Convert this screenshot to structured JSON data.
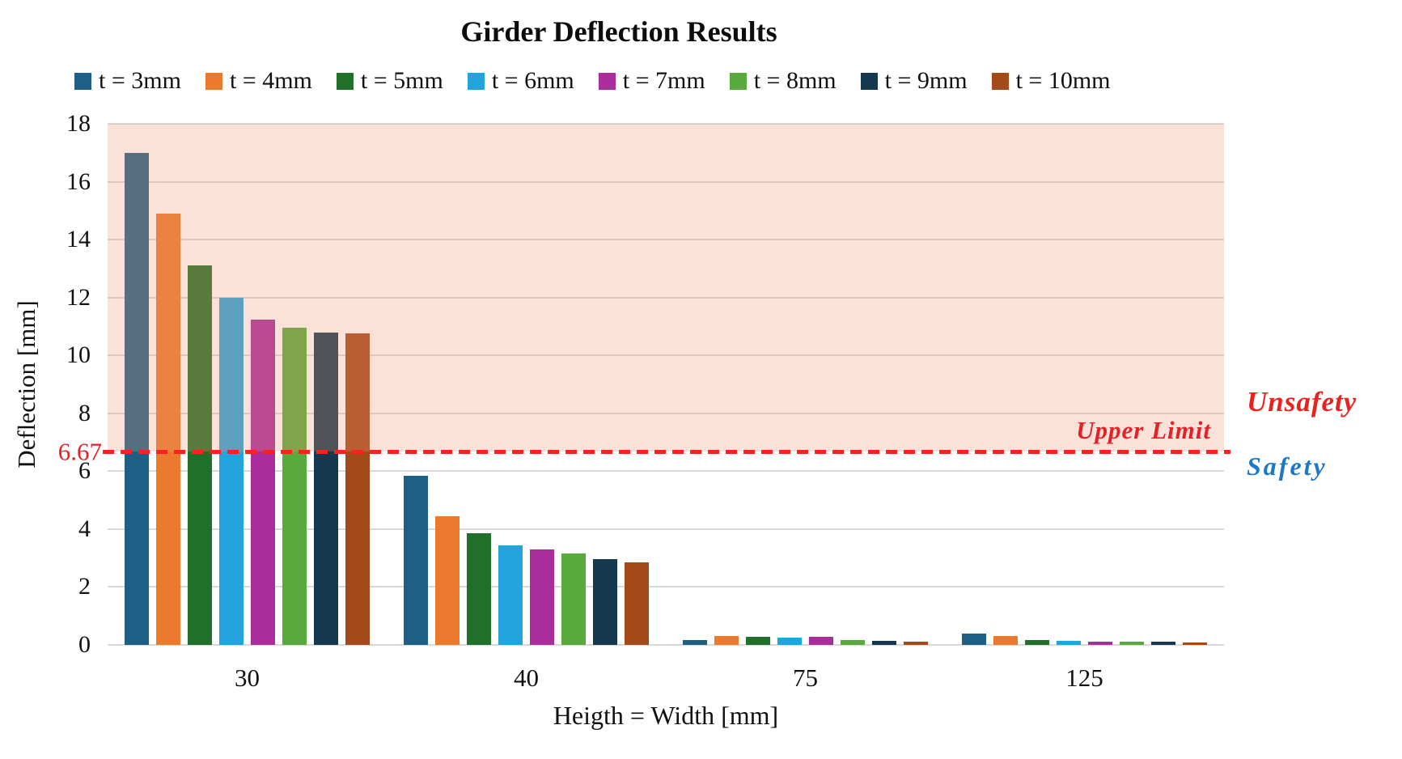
{
  "chart_data": {
    "type": "bar",
    "title": "Girder Deflection Results",
    "xlabel": "Heigth = Width [mm]",
    "ylabel": "Deflection [mm]",
    "categories": [
      "30",
      "40",
      "75",
      "125"
    ],
    "series": [
      {
        "name": "t = 3mm",
        "color": "#1E5F86",
        "values": [
          17.0,
          5.85,
          0.18,
          0.4
        ]
      },
      {
        "name": "t = 4mm",
        "color": "#EB7A2F",
        "values": [
          14.9,
          4.45,
          0.32,
          0.3
        ]
      },
      {
        "name": "t = 5mm",
        "color": "#207029",
        "values": [
          13.1,
          3.85,
          0.27,
          0.17
        ]
      },
      {
        "name": "t = 6mm",
        "color": "#24A4DC",
        "values": [
          12.0,
          3.45,
          0.24,
          0.14
        ]
      },
      {
        "name": "t = 7mm",
        "color": "#A92D9B",
        "values": [
          11.25,
          3.3,
          0.27,
          0.12
        ]
      },
      {
        "name": "t = 8mm",
        "color": "#57AA3B",
        "values": [
          10.95,
          3.15,
          0.17,
          0.11
        ]
      },
      {
        "name": "t = 9mm",
        "color": "#16384E",
        "values": [
          10.8,
          2.95,
          0.14,
          0.11
        ]
      },
      {
        "name": "t = 10mm",
        "color": "#A4491A",
        "values": [
          10.75,
          2.85,
          0.1,
          0.08
        ]
      }
    ],
    "ylim": [
      0,
      18
    ],
    "yticks": [
      0,
      2,
      4,
      6,
      8,
      10,
      12,
      14,
      16,
      18
    ],
    "grid": true,
    "legend_position": "top",
    "annotations": {
      "upper_limit": {
        "value": 6.67,
        "label": "6.67",
        "text": "Upper Limit",
        "color": "#E32227",
        "line_color": "#F8221E"
      },
      "unsafe_zone": {
        "label": "Unsafety",
        "color": "#E8231F",
        "fill": "rgba(237,150,115,0.28)"
      },
      "safe_zone": {
        "label": "Safety",
        "color": "#1E78C8"
      }
    }
  }
}
